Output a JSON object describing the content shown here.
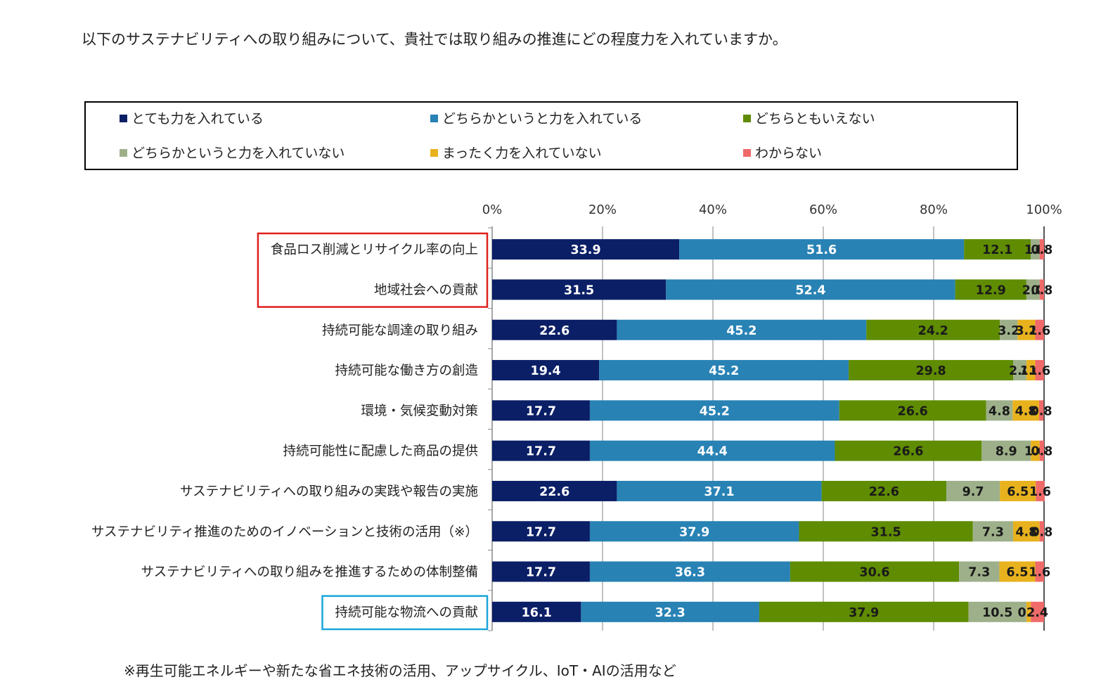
{
  "question": "以下のサステナビリティへの取り組みについて、貴社では取り組みの推進にどの程度力を入れていますか。",
  "footnote": "※再生可能エネルギーや新たな省エネ技術の活用、アップサイクル、IoT・AIの活用など",
  "legend": [
    {
      "label": "とても力を入れている",
      "color": "#0b1f66"
    },
    {
      "label": "どちらかというと力を入れている",
      "color": "#2882b4"
    },
    {
      "label": "どちらともいえない",
      "color": "#5f8c00"
    },
    {
      "label": "どちらかというと力を入れていない",
      "color": "#9db08a"
    },
    {
      "label": "まったく力を入れていない",
      "color": "#e8b21e"
    },
    {
      "label": "わからない",
      "color": "#f06a6a"
    }
  ],
  "chart_data": {
    "type": "bar",
    "orientation": "horizontal",
    "stacked": true,
    "xlim": [
      0,
      100
    ],
    "x_ticks": [
      "0%",
      "20%",
      "40%",
      "60%",
      "80%",
      "100%"
    ],
    "grid": true,
    "legend_position": "top",
    "categories": [
      "食品ロス削減とリサイクル率の向上",
      "地域社会への貢献",
      "持続可能な調達の取り組み",
      "持続可能な働き方の創造",
      "環境・気候変動対策",
      "持続可能性に配慮した商品の提供",
      "サステナビリティへの取り組みの実践や報告の実施",
      "サステナビリティ推進のためのイノベーションと技術の活用（※）",
      "サステナビリティへの取り組みを推進するための体制整備",
      "持続可能な物流への貢献"
    ],
    "highlight": [
      {
        "categories": [
          0,
          1
        ],
        "color": "#e0201e"
      },
      {
        "categories": [
          9
        ],
        "color": "#1aa6d9"
      }
    ],
    "series": [
      {
        "name": "とても力を入れている",
        "color": "#0b1f66",
        "label_color": "#ffffff",
        "values": [
          33.9,
          31.5,
          22.6,
          19.4,
          17.7,
          17.7,
          22.6,
          17.7,
          17.7,
          16.1
        ]
      },
      {
        "name": "どちらかというと力を入れている",
        "color": "#2882b4",
        "label_color": "#ffffff",
        "values": [
          51.6,
          52.4,
          45.2,
          45.2,
          45.2,
          44.4,
          37.1,
          37.9,
          36.3,
          32.3
        ]
      },
      {
        "name": "どちらともいえない",
        "color": "#5f8c00",
        "label_color": "#1a1a1a",
        "values": [
          12.1,
          12.9,
          24.2,
          29.8,
          26.6,
          26.6,
          22.6,
          31.5,
          30.6,
          37.9
        ]
      },
      {
        "name": "どちらかというと力を入れていない",
        "color": "#9db08a",
        "label_color": "#1a1a1a",
        "values": [
          1.6,
          2.4,
          3.2,
          2.4,
          4.8,
          8.9,
          9.7,
          7.3,
          7.3,
          10.5
        ]
      },
      {
        "name": "まったく力を入れていない",
        "color": "#e8b21e",
        "label_color": "#1a1a1a",
        "values": [
          0,
          0,
          3.2,
          1.6,
          4.8,
          1.6,
          6.5,
          4.8,
          6.5,
          0.8
        ]
      },
      {
        "name": "わからない",
        "color": "#f06a6a",
        "label_color": "#1a1a1a",
        "values": [
          0.8,
          0.8,
          1.6,
          1.6,
          0.8,
          0.8,
          1.6,
          0.8,
          1.6,
          2.4
        ]
      }
    ]
  }
}
